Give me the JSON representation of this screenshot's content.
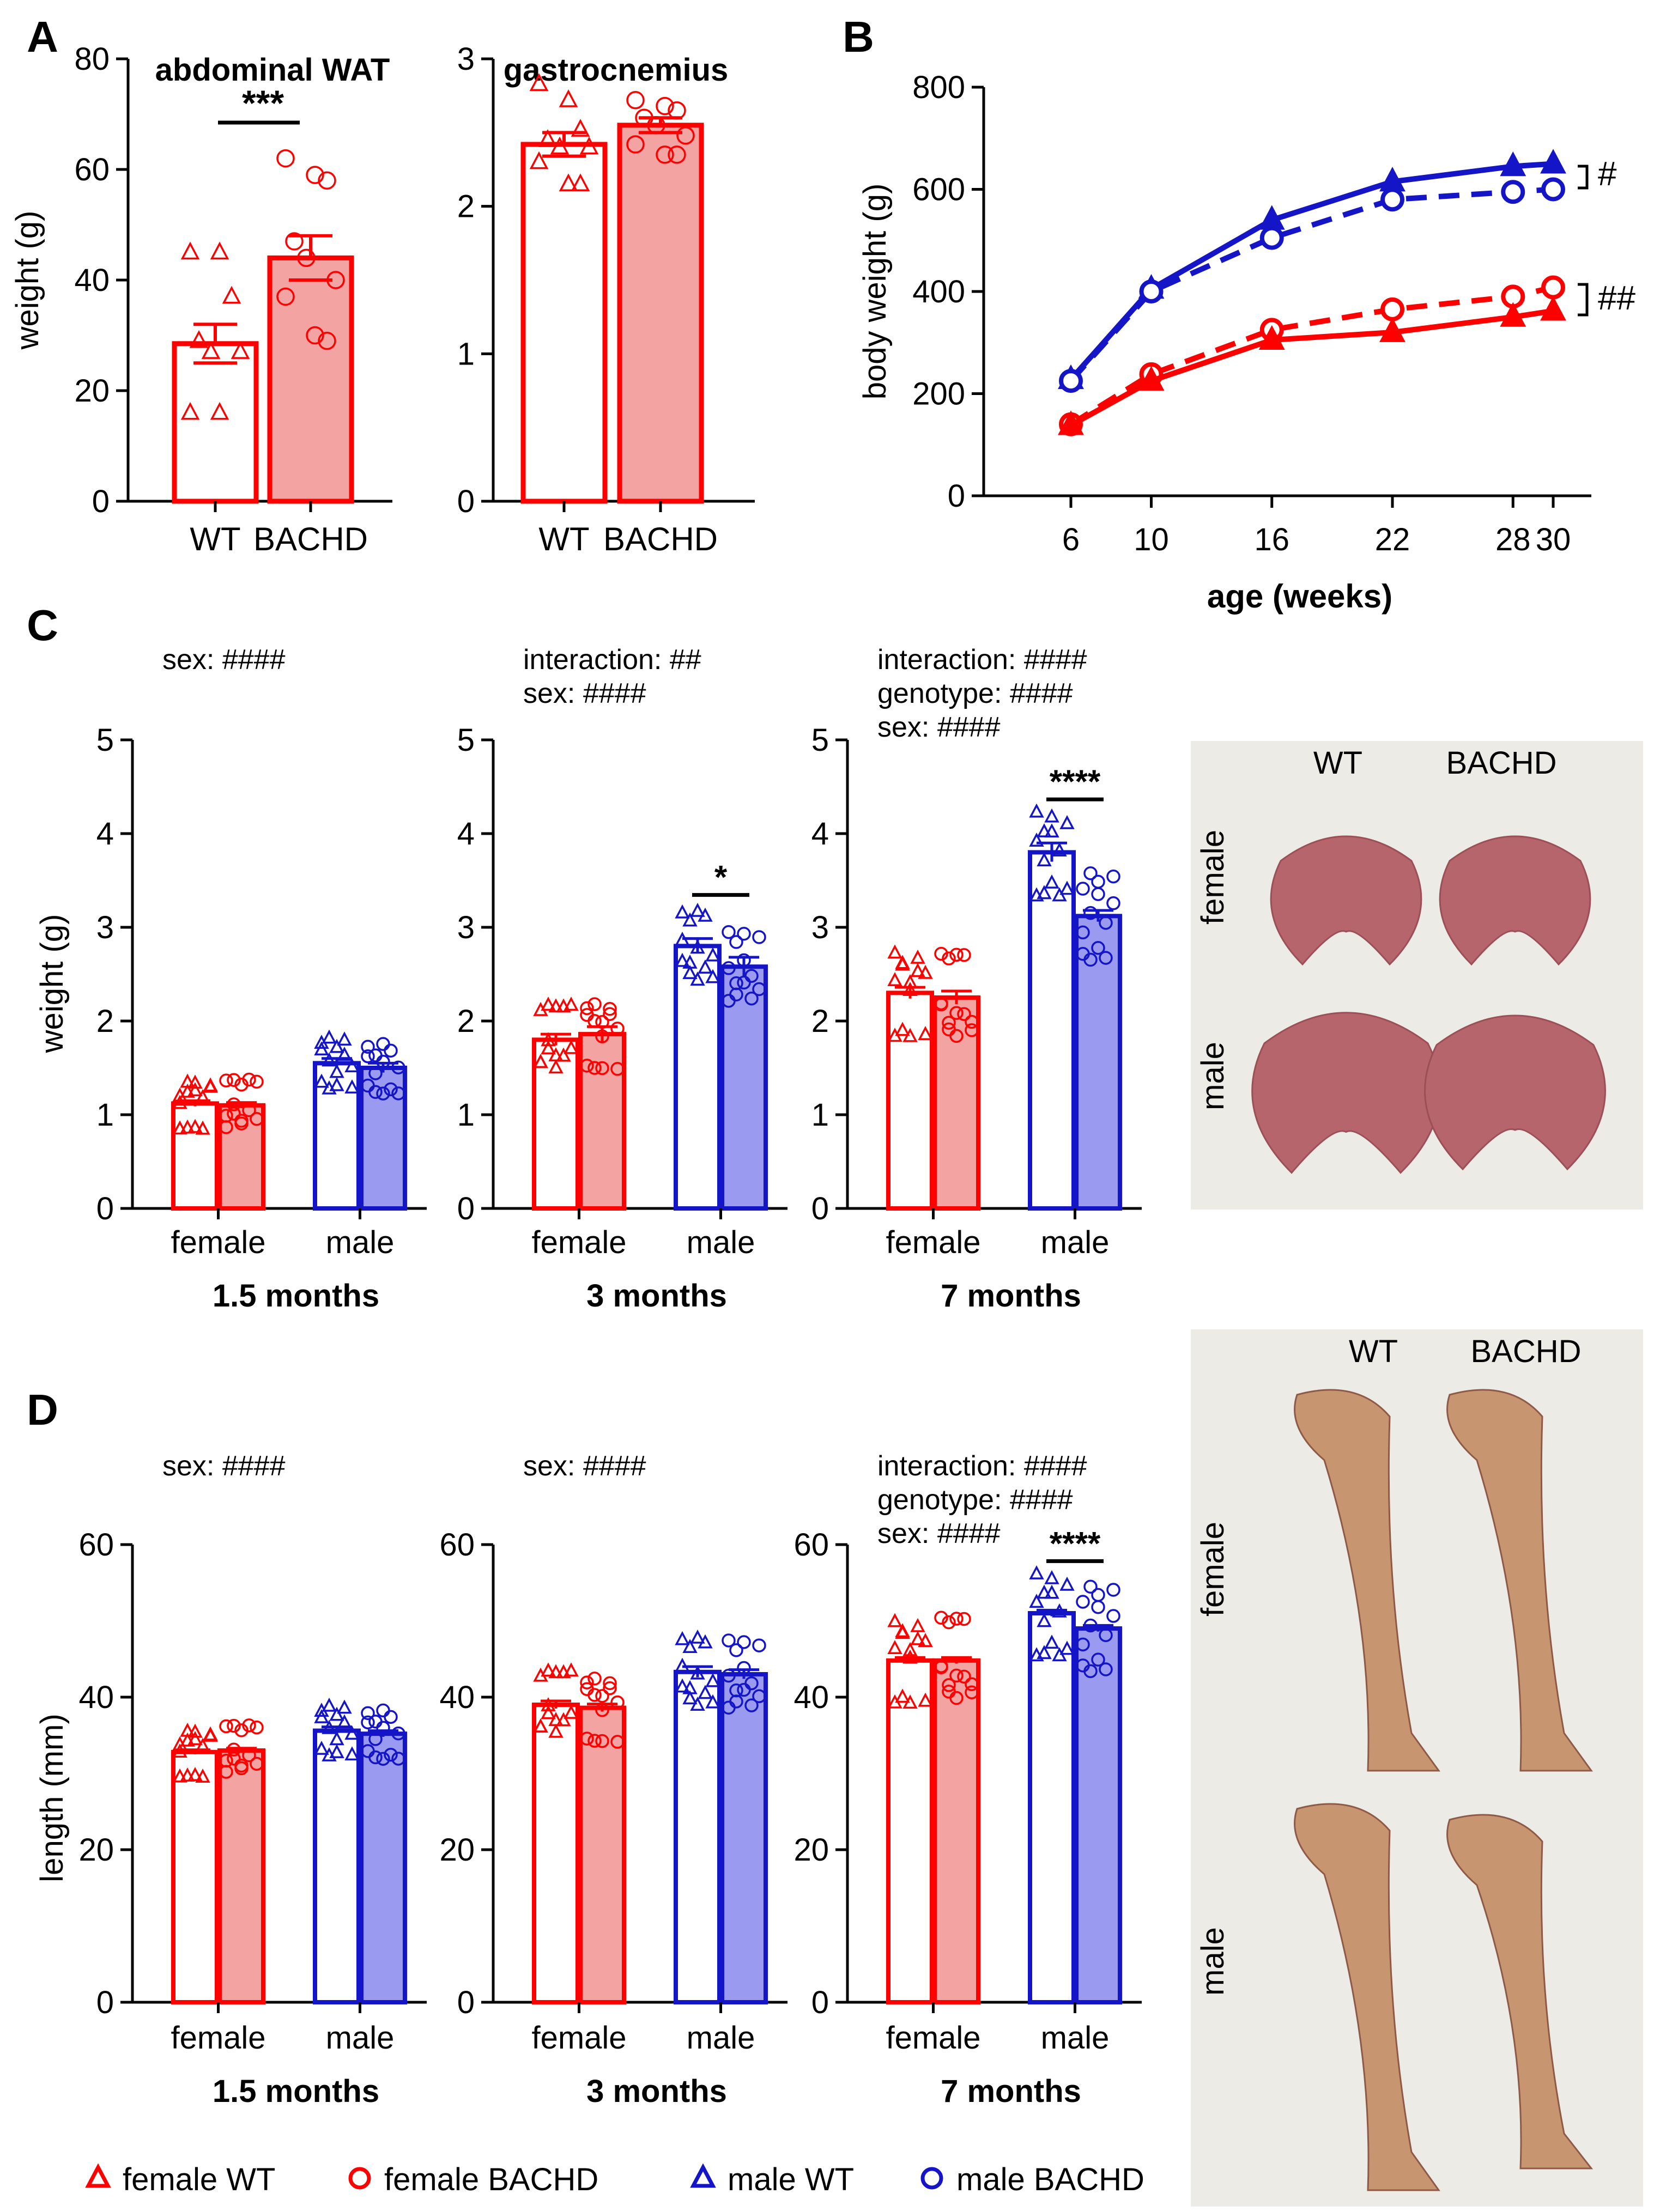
{
  "colors": {
    "red": "#ff0000",
    "red_fill": "#f4a3a3",
    "blue": "#1515c8",
    "blue_fill": "#9a9af0",
    "black": "#000000",
    "photo_bg": "#ecebe6",
    "liver": "#b5656b",
    "bone": "#c7956f"
  },
  "legend": [
    {
      "label": "female WT",
      "marker": "triangle",
      "color": "red"
    },
    {
      "label": "female BACHD",
      "marker": "circle",
      "color": "red"
    },
    {
      "label": "male WT",
      "marker": "triangle",
      "color": "blue"
    },
    {
      "label": "male BACHD",
      "marker": "circle",
      "color": "blue"
    }
  ],
  "photos": {
    "liver": {
      "col1": "WT",
      "col2": "BACHD",
      "row1": "female",
      "row2": "male"
    },
    "bone": {
      "col1": "WT",
      "col2": "BACHD",
      "row1": "female",
      "row2": "male"
    }
  },
  "chart_data": [
    {
      "panel": "A",
      "type": "bar",
      "title": "abdominal WAT",
      "ylabel": "weight (g)",
      "ylim": [
        0,
        80
      ],
      "yticks": [
        "0",
        "20",
        "40",
        "60",
        "80"
      ],
      "categories": [
        "WT",
        "BACHD"
      ],
      "values": [
        28.5,
        44.0
      ],
      "sem": [
        3.5,
        4.0
      ],
      "points": [
        [
          45,
          45,
          37,
          29,
          27,
          27,
          16,
          16
        ],
        [
          62,
          59,
          58,
          47,
          44,
          40,
          37,
          30,
          29
        ]
      ],
      "significance": "***"
    },
    {
      "panel": "A",
      "type": "bar",
      "title": "gastrocnemius",
      "ylim": [
        0,
        3
      ],
      "yticks": [
        "0",
        "1",
        "2",
        "3"
      ],
      "categories": [
        "WT",
        "BACHD"
      ],
      "values": [
        2.42,
        2.55
      ],
      "sem": [
        0.08,
        0.05
      ],
      "points": [
        [
          2.83,
          2.72,
          2.52,
          2.45,
          2.4,
          2.4,
          2.3,
          2.15,
          2.15
        ],
        [
          2.72,
          2.68,
          2.65,
          2.6,
          2.55,
          2.48,
          2.42,
          2.35,
          2.35
        ]
      ]
    },
    {
      "panel": "B",
      "type": "line",
      "xlabel": "age (weeks)",
      "ylabel": "body weight (g)",
      "x": [
        6,
        10,
        16,
        22,
        28,
        30
      ],
      "ylim": [
        0,
        800
      ],
      "yticks": [
        "0",
        "200",
        "400",
        "600",
        "800"
      ],
      "series": [
        {
          "name": "male WT",
          "values": [
            228,
            405,
            540,
            615,
            645,
            650
          ]
        },
        {
          "name": "male BACHD",
          "values": [
            225,
            400,
            505,
            580,
            595,
            600
          ]
        },
        {
          "name": "female BACHD",
          "values": [
            140,
            238,
            325,
            365,
            390,
            408
          ]
        },
        {
          "name": "female WT",
          "values": [
            138,
            225,
            305,
            320,
            350,
            362
          ]
        }
      ],
      "annotations": [
        "#",
        "##"
      ]
    },
    {
      "panel": "C",
      "type": "bar",
      "ylabel": "weight (g)",
      "ylim": [
        0,
        5
      ],
      "yticks": [
        "0",
        "1",
        "2",
        "3",
        "4",
        "5"
      ],
      "groups": [
        "female",
        "male"
      ],
      "subplots": [
        {
          "label": "1.5 months",
          "stats": [
            "sex: ####"
          ],
          "values": [
            1.12,
            1.1,
            1.55,
            1.5
          ],
          "sem": [
            0.03,
            0.03,
            0.05,
            0.05
          ],
          "significance": ""
        },
        {
          "label": "3 months",
          "stats": [
            "interaction: ##",
            "sex: ####"
          ],
          "values": [
            1.8,
            1.86,
            2.8,
            2.58
          ],
          "sem": [
            0.06,
            0.08,
            0.08,
            0.1
          ],
          "significance": "*"
        },
        {
          "label": "7 months",
          "stats": [
            "interaction: ####",
            "genotype: ####",
            "sex: ####"
          ],
          "values": [
            2.3,
            2.25,
            3.8,
            3.12
          ],
          "sem": [
            0.06,
            0.07,
            0.1,
            0.06
          ],
          "significance": "****"
        }
      ]
    },
    {
      "panel": "D",
      "type": "bar",
      "ylabel": "length (mm)",
      "ylim": [
        0,
        60
      ],
      "yticks": [
        "0",
        "20",
        "40",
        "60"
      ],
      "groups": [
        "female",
        "male"
      ],
      "subplots": [
        {
          "label": "1.5 months",
          "stats": [
            "sex: ####"
          ],
          "values": [
            32.8,
            33.0,
            35.6,
            35.2
          ],
          "sem": [
            0.3,
            0.3,
            0.5,
            0.4
          ],
          "significance": ""
        },
        {
          "label": "3 months",
          "stats": [
            "sex: ####"
          ],
          "values": [
            39.0,
            38.6,
            43.3,
            43.0
          ],
          "sem": [
            0.5,
            0.5,
            0.7,
            0.6
          ],
          "significance": ""
        },
        {
          "label": "7 months",
          "stats": [
            "interaction: ####",
            "genotype: ####",
            "sex: ####"
          ],
          "values": [
            44.8,
            44.8,
            51.0,
            49.0
          ],
          "sem": [
            0.4,
            0.4,
            0.4,
            0.4
          ],
          "significance": "****"
        }
      ]
    }
  ],
  "panel_labels": [
    "A",
    "B",
    "C",
    "D"
  ]
}
